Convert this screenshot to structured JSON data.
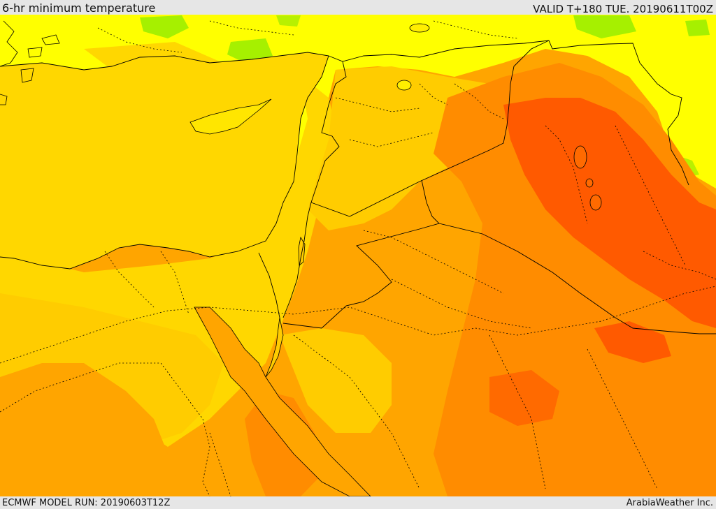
{
  "header": {
    "title": "6-hr minimum temperature",
    "valid_time": "VALID T+180 TUE. 20190611T00Z"
  },
  "footer": {
    "model_run": "ECMWF MODEL RUN: 20190603T12Z",
    "credit": "ArabiaWeather Inc."
  },
  "colors": {
    "sea": "#ffd700",
    "light_yellow": "#ffff00",
    "yellow_orange": "#ffcc00",
    "orange": "#ffa500",
    "dark_orange": "#ff8c00",
    "red_orange": "#ff5a00",
    "green": "#a6f000",
    "border": "#000000"
  }
}
